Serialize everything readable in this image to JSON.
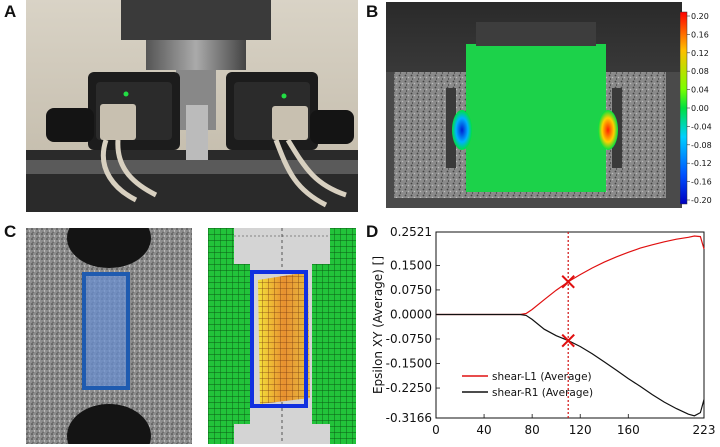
{
  "panels": {
    "a": "A",
    "b": "B",
    "c": "C",
    "d": "D"
  },
  "colorbar": {
    "ticks": [
      "0.20",
      "0.16",
      "0.12",
      "0.08",
      "0.04",
      "0.00",
      "-0.04",
      "-0.08",
      "-0.12",
      "-0.16",
      "-0.20"
    ],
    "colors": [
      "#ff0000",
      "#ff6a00",
      "#ffbf00",
      "#e8ff00",
      "#7bff00",
      "#00e040",
      "#00e0b0",
      "#00c8ff",
      "#0090ff",
      "#0040ff",
      "#0000d0"
    ]
  },
  "chart_data": {
    "type": "line",
    "ylabel": "Epsilon XY (Average) []",
    "xlim": [
      0,
      223
    ],
    "ylim": [
      -0.3166,
      0.2521
    ],
    "xticks": [
      "0",
      "40",
      "80",
      "120",
      "160",
      "223"
    ],
    "xtick_values": [
      0,
      40,
      80,
      120,
      160,
      223
    ],
    "yticks": [
      "0.2521",
      "0.1500",
      "0.0750",
      "0.0000",
      "-0.0750",
      "-0.1500",
      "-0.2250",
      "-0.3166"
    ],
    "ytick_values": [
      0.2521,
      0.15,
      0.075,
      0.0,
      -0.075,
      -0.15,
      -0.225,
      -0.3166
    ],
    "vline_x": 110,
    "markers": [
      {
        "x": 110,
        "y": 0.1
      },
      {
        "x": 110,
        "y": -0.08
      }
    ],
    "series": [
      {
        "name": "shear-L1 (Average)",
        "color": "#e01010",
        "x": [
          0,
          40,
          60,
          70,
          75,
          80,
          90,
          100,
          110,
          120,
          130,
          140,
          150,
          160,
          170,
          180,
          190,
          200,
          210,
          215,
          220,
          223
        ],
        "y": [
          0.0,
          0.0,
          0.0,
          0.0,
          0.003,
          0.015,
          0.045,
          0.074,
          0.1,
          0.122,
          0.142,
          0.16,
          0.176,
          0.19,
          0.203,
          0.213,
          0.222,
          0.23,
          0.236,
          0.24,
          0.238,
          0.2
        ]
      },
      {
        "name": "shear-R1 (Average)",
        "color": "#111111",
        "x": [
          0,
          40,
          60,
          70,
          75,
          80,
          90,
          100,
          110,
          120,
          130,
          140,
          150,
          160,
          170,
          180,
          190,
          200,
          210,
          215,
          220,
          223
        ],
        "y": [
          0.0,
          0.0,
          0.0,
          0.0,
          -0.003,
          -0.015,
          -0.045,
          -0.065,
          -0.08,
          -0.098,
          -0.12,
          -0.145,
          -0.17,
          -0.196,
          -0.22,
          -0.245,
          -0.268,
          -0.288,
          -0.305,
          -0.31,
          -0.3,
          -0.26
        ]
      }
    ]
  }
}
